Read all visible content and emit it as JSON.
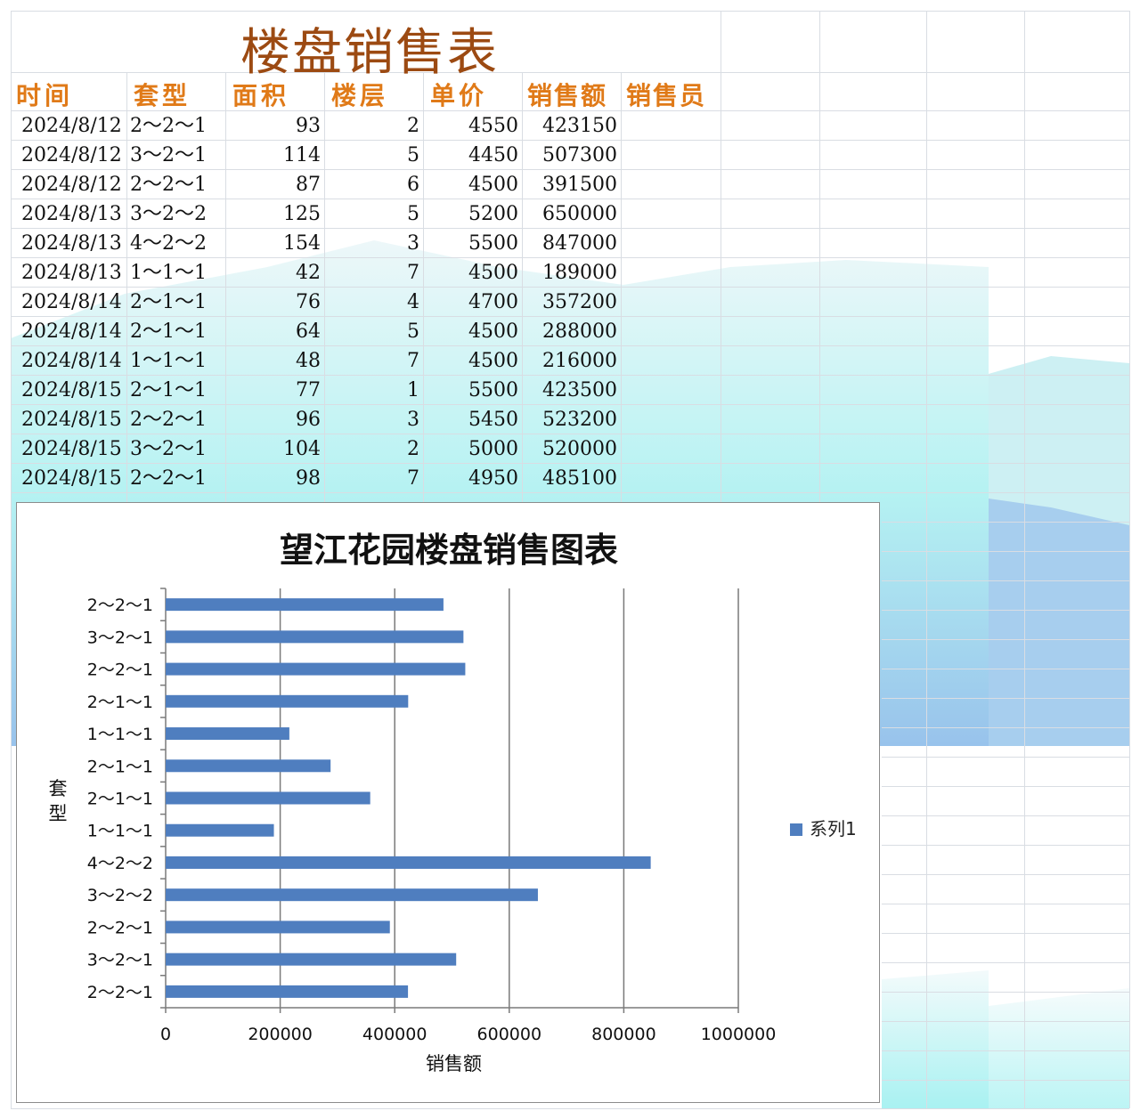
{
  "sheet": {
    "title": "楼盘销售表",
    "headers": [
      "时间",
      "套型",
      "面积",
      "楼层",
      "单价",
      "销售额",
      "销售员"
    ],
    "rows": [
      [
        "2024/8/12",
        "2〜2〜1",
        "93",
        "2",
        "4550",
        "423150"
      ],
      [
        "2024/8/12",
        "3〜2〜1",
        "114",
        "5",
        "4450",
        "507300"
      ],
      [
        "2024/8/12",
        "2〜2〜1",
        "87",
        "6",
        "4500",
        "391500"
      ],
      [
        "2024/8/13",
        "3〜2〜2",
        "125",
        "5",
        "5200",
        "650000"
      ],
      [
        "2024/8/13",
        "4〜2〜2",
        "154",
        "3",
        "5500",
        "847000"
      ],
      [
        "2024/8/13",
        "1〜1〜1",
        "42",
        "7",
        "4500",
        "189000"
      ],
      [
        "2024/8/14",
        "2〜1〜1",
        "76",
        "4",
        "4700",
        "357200"
      ],
      [
        "2024/8/14",
        "2〜1〜1",
        "64",
        "5",
        "4500",
        "288000"
      ],
      [
        "2024/8/14",
        "1〜1〜1",
        "48",
        "7",
        "4500",
        "216000"
      ],
      [
        "2024/8/15",
        "2〜1〜1",
        "77",
        "1",
        "5500",
        "423500"
      ],
      [
        "2024/8/15",
        "2〜2〜1",
        "96",
        "3",
        "5450",
        "523200"
      ],
      [
        "2024/8/15",
        "3〜2〜1",
        "104",
        "2",
        "5000",
        "520000"
      ],
      [
        "2024/8/15",
        "2〜2〜1",
        "98",
        "7",
        "4950",
        "485100"
      ]
    ]
  },
  "colors": {
    "title": "#9c4a12",
    "header": "#e07a18",
    "bar": "#4f7ebf",
    "gridline": "#d9dde3"
  },
  "chart_data": {
    "type": "bar",
    "orientation": "horizontal",
    "title": "望江花园楼盘销售图表",
    "xlabel": "销售额",
    "ylabel": "套型",
    "xlim": [
      0,
      1000000
    ],
    "xticks": [
      "0",
      "200000",
      "400000",
      "600000",
      "800000",
      "1000000"
    ],
    "grid": true,
    "legend_position": "right",
    "categories": [
      "2〜2〜1",
      "3〜2〜1",
      "2〜2〜1",
      "3〜2〜2",
      "4〜2〜2",
      "1〜1〜1",
      "2〜1〜1",
      "2〜1〜1",
      "1〜1〜1",
      "2〜1〜1",
      "2〜2〜1",
      "3〜2〜1",
      "2〜2〜1"
    ],
    "series": [
      {
        "name": "系列1",
        "values": [
          423150,
          507300,
          391500,
          650000,
          847000,
          189000,
          357200,
          288000,
          216000,
          423500,
          523200,
          520000,
          485100
        ]
      }
    ]
  }
}
